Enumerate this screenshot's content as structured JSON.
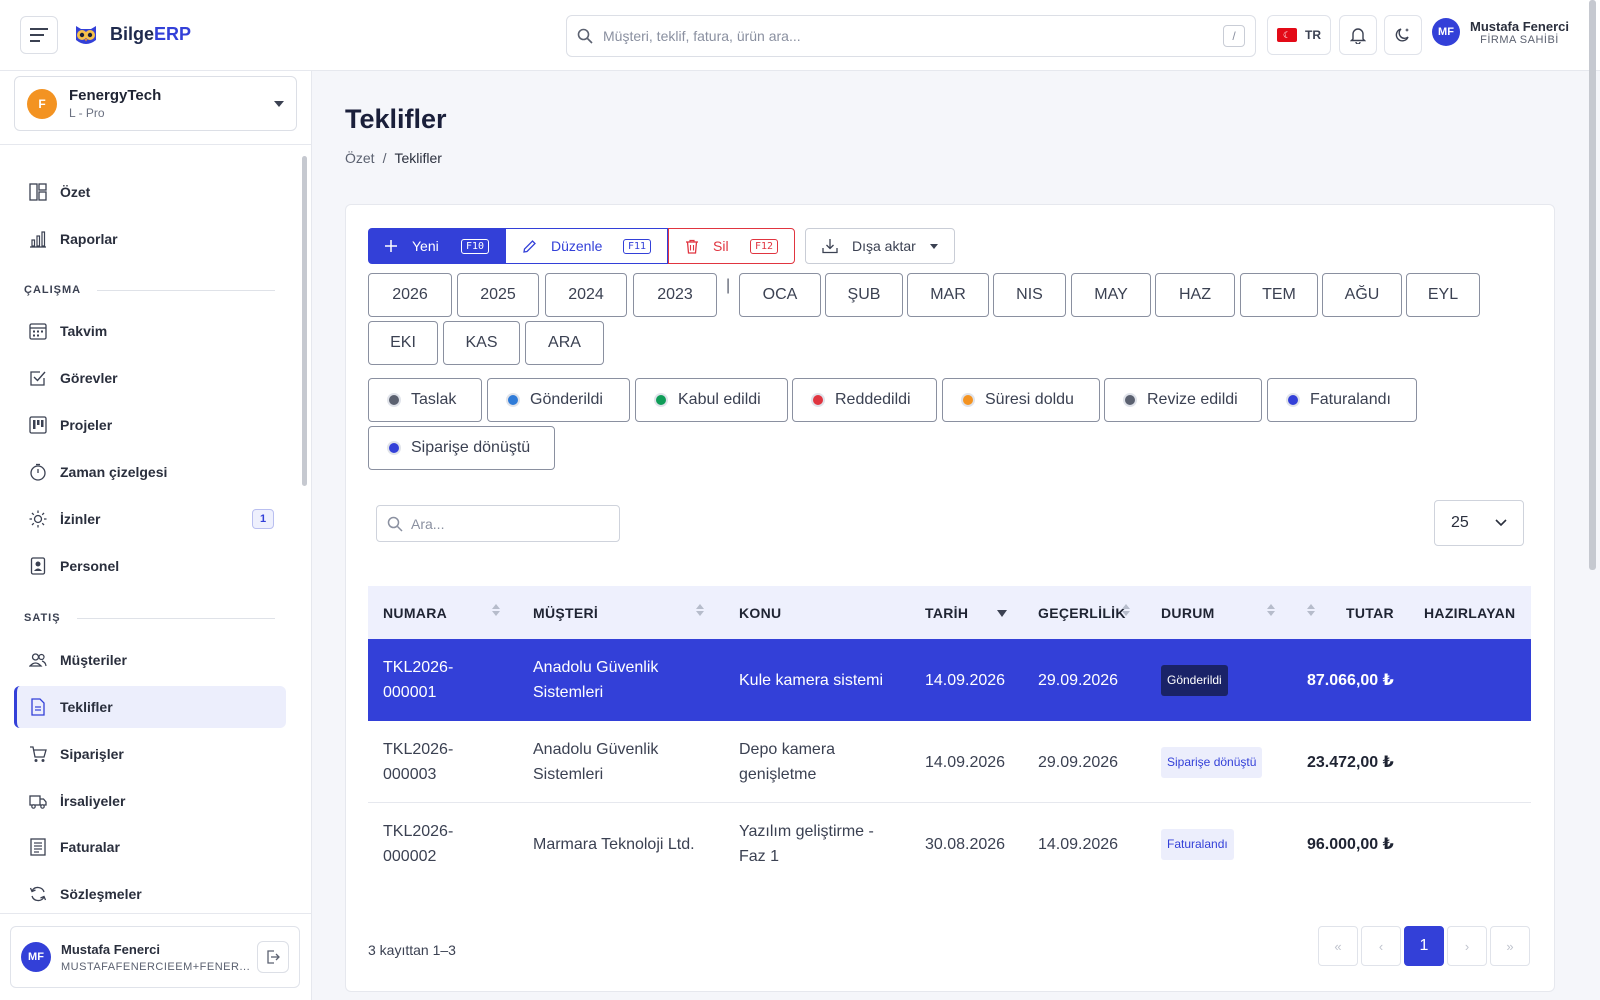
{
  "app": {
    "name_main": "Bilge",
    "name_accent": "ERP"
  },
  "top": {
    "search_placeholder": "Müşteri, teklif, fatura, ürün ara...",
    "search_shortcut": "/",
    "lang": "TR",
    "user_initials": "MF",
    "user_name": "Mustafa Fenerci",
    "user_role": "FİRMA SAHİBİ"
  },
  "company": {
    "initial": "F",
    "name": "FenergyTech",
    "plan": "L - Pro"
  },
  "sidebar": {
    "items_top": [
      {
        "label": "Özet",
        "icon": "dashboard-icon"
      },
      {
        "label": "Raporlar",
        "icon": "bar-chart-icon"
      }
    ],
    "section_work": "ÇALIŞMA",
    "items_work": [
      {
        "label": "Takvim",
        "icon": "calendar-icon"
      },
      {
        "label": "Görevler",
        "icon": "checkbox-icon"
      },
      {
        "label": "Projeler",
        "icon": "kanban-icon"
      },
      {
        "label": "Zaman çizelgesi",
        "icon": "stopwatch-icon"
      },
      {
        "label": "İzinler",
        "icon": "sun-icon",
        "badge": "1"
      },
      {
        "label": "Personel",
        "icon": "id-badge-icon"
      }
    ],
    "section_sales": "SATIŞ",
    "items_sales": [
      {
        "label": "Müşteriler",
        "icon": "users-icon"
      },
      {
        "label": "Teklifler",
        "icon": "document-icon"
      },
      {
        "label": "Siparişler",
        "icon": "cart-icon"
      },
      {
        "label": "İrsaliyeler",
        "icon": "truck-icon"
      },
      {
        "label": "Faturalar",
        "icon": "invoice-icon"
      },
      {
        "label": "Sözleşmeler",
        "icon": "refresh-icon"
      }
    ],
    "user_initials": "MF",
    "user_name": "Mustafa Fenerci",
    "user_email": "MUSTAFAFENERCIEEM+FENER..."
  },
  "page": {
    "title": "Teklifler",
    "breadcrumb_root": "Özet",
    "breadcrumb_sep": "/",
    "breadcrumb_current": "Teklifler"
  },
  "toolbar": {
    "new_label": "Yeni",
    "new_key": "F10",
    "edit_label": "Düzenle",
    "edit_key": "F11",
    "delete_label": "Sil",
    "delete_key": "F12",
    "export_label": "Dışa aktar"
  },
  "filters": {
    "years": [
      "2026",
      "2025",
      "2024",
      "2023"
    ],
    "separator": "|",
    "months": [
      "OCA",
      "ŞUB",
      "MAR",
      "NIS",
      "MAY",
      "HAZ",
      "TEM",
      "AĞU",
      "EYL",
      "EKI",
      "KAS",
      "ARA"
    ],
    "statuses": [
      {
        "label": "Taslak",
        "color": "#5b6170"
      },
      {
        "label": "Gönderildi",
        "color": "#2f7bd8"
      },
      {
        "label": "Kabul edildi",
        "color": "#0f9d58"
      },
      {
        "label": "Reddedildi",
        "color": "#e03540"
      },
      {
        "label": "Süresi doldu",
        "color": "#f39322"
      },
      {
        "label": "Revize edildi",
        "color": "#5b6170"
      },
      {
        "label": "Faturalandı",
        "color": "#3340d8"
      },
      {
        "label": "Siparişe dönüştü",
        "color": "#3340d8"
      }
    ]
  },
  "table": {
    "search_placeholder": "Ara...",
    "page_size": "25",
    "columns": [
      "NUMARA",
      "MÜŞTERİ",
      "KONU",
      "TARİH",
      "GEÇERLİLİK",
      "DURUM",
      "TUTAR",
      "HAZIRLAYAN"
    ],
    "rows": [
      {
        "number": "TKL2026-000001",
        "customer": "Anadolu Güvenlik Sistemleri",
        "subject": "Kule kamera sistemi",
        "date": "14.09.2026",
        "valid": "29.09.2026",
        "status": "Gönderildi",
        "amount": "87.066,00 ₺",
        "prepared_by": ""
      },
      {
        "number": "TKL2026-000003",
        "customer": "Anadolu Güvenlik Sistemleri",
        "subject": "Depo kamera genişletme",
        "date": "14.09.2026",
        "valid": "29.09.2026",
        "status": "Siparişe dönüştü",
        "amount": "23.472,00 ₺",
        "prepared_by": ""
      },
      {
        "number": "TKL2026-000002",
        "customer": "Marmara Teknoloji Ltd.",
        "subject": "Yazılım geliştirme - Faz 1",
        "date": "30.08.2026",
        "valid": "14.09.2026",
        "status": "Faturalandı",
        "amount": "96.000,00 ₺",
        "prepared_by": ""
      }
    ],
    "footer_count": "3 kayıttan 1–3",
    "pagination": {
      "first": "«",
      "prev": "‹",
      "current": "1",
      "next": "›",
      "last": "»"
    }
  },
  "colors": {
    "accent": "#3340d8",
    "danger": "#e03540",
    "brand_orange": "#f39322"
  }
}
